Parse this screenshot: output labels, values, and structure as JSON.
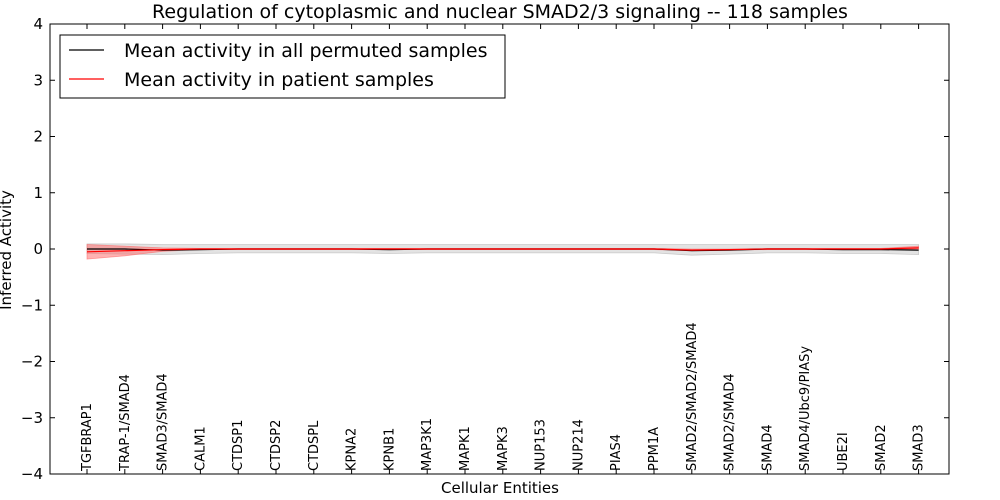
{
  "chart_data": {
    "type": "line",
    "title": "Regulation of cytoplasmic and nuclear SMAD2/3 signaling -- 118 samples",
    "xlabel": "Cellular Entities",
    "ylabel": "Inferred Activity",
    "ylim": [
      -4,
      4
    ],
    "yticks": [
      "−4",
      "−3",
      "−2",
      "−1",
      "0",
      "1",
      "2",
      "3",
      "4"
    ],
    "grid": false,
    "legend_position": "top-left",
    "categories": [
      "TGFBRAP1",
      "TRAP-1/SMAD4",
      "SMAD3/SMAD4",
      "CALM1",
      "CTDSP1",
      "CTDSP2",
      "CTDSPL",
      "KPNA2",
      "KPNB1",
      "MAP3K1",
      "MAPK1",
      "MAPK3",
      "NUP153",
      "NUP214",
      "PIAS4",
      "PPM1A",
      "SMAD2/SMAD2/SMAD4",
      "SMAD2/SMAD4",
      "SMAD4",
      "SMAD4/Ubc9/PIASy",
      "UBE2I",
      "SMAD2",
      "SMAD3"
    ],
    "series": [
      {
        "name": "Mean activity in all permuted samples",
        "color": "#000000",
        "values": [
          0,
          0,
          -0.02,
          -0.01,
          0,
          0,
          0,
          0,
          -0.01,
          0,
          0,
          0,
          0,
          0,
          0,
          0,
          -0.03,
          -0.02,
          0,
          0,
          -0.01,
          -0.01,
          -0.02
        ],
        "band_lower": [
          -0.08,
          -0.09,
          -0.1,
          -0.08,
          -0.07,
          -0.07,
          -0.07,
          -0.07,
          -0.08,
          -0.07,
          -0.07,
          -0.07,
          -0.07,
          -0.07,
          -0.07,
          -0.07,
          -0.11,
          -0.09,
          -0.07,
          -0.07,
          -0.08,
          -0.08,
          -0.1
        ],
        "band_upper": [
          0.09,
          0.09,
          0.08,
          0.08,
          0.08,
          0.08,
          0.08,
          0.08,
          0.08,
          0.08,
          0.08,
          0.08,
          0.08,
          0.08,
          0.08,
          0.08,
          0.08,
          0.08,
          0.08,
          0.08,
          0.08,
          0.08,
          0.08
        ],
        "band_color": "#b0b0b0"
      },
      {
        "name": "Mean activity in patient samples",
        "color": "#ff0000",
        "values": [
          -0.05,
          -0.03,
          -0.01,
          0,
          0,
          0,
          0,
          0,
          0,
          0,
          0,
          0,
          0,
          0,
          0,
          0,
          -0.02,
          -0.01,
          0,
          0,
          0,
          0,
          0.02
        ],
        "band_lower": [
          -0.18,
          -0.12,
          -0.04,
          -0.01,
          -0.01,
          -0.01,
          -0.01,
          -0.01,
          -0.01,
          -0.01,
          -0.01,
          -0.01,
          -0.01,
          -0.01,
          -0.01,
          -0.01,
          -0.03,
          -0.02,
          -0.01,
          -0.01,
          -0.01,
          -0.01,
          0
        ],
        "band_upper": [
          0.08,
          0.05,
          0.02,
          0.01,
          0.01,
          0.01,
          0.01,
          0.01,
          0.01,
          0.01,
          0.01,
          0.01,
          0.01,
          0.01,
          0.01,
          0.01,
          0,
          0,
          0.01,
          0.01,
          0.01,
          0.01,
          0.05
        ],
        "band_color": "#ff6666"
      }
    ]
  }
}
